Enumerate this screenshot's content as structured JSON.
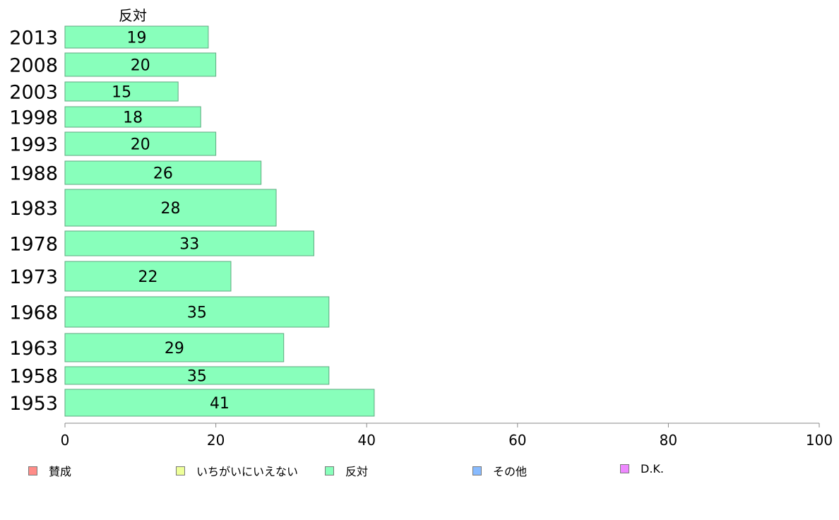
{
  "chart_data": {
    "type": "bar",
    "orientation": "horizontal",
    "series_title": "反対",
    "categories": [
      "2013",
      "2008",
      "2003",
      "1998",
      "1993",
      "1988",
      "1983",
      "1978",
      "1973",
      "1968",
      "1963",
      "1958",
      "1953"
    ],
    "series": [
      {
        "name": "反対",
        "values": [
          19,
          20,
          15,
          18,
          20,
          26,
          28,
          33,
          22,
          35,
          29,
          35,
          41
        ],
        "color": "#88ffbb"
      }
    ],
    "xlim": [
      0,
      100
    ],
    "x_ticks": [
      0,
      20,
      40,
      60,
      80,
      100
    ],
    "legend": [
      {
        "label": "賛成",
        "color": "#ff8c88"
      },
      {
        "label": "いちがいにいえない",
        "color": "#eeff99"
      },
      {
        "label": "反対",
        "color": "#88ffbb"
      },
      {
        "label": "その他",
        "color": "#88bbff"
      },
      {
        "label": "D.K.",
        "color": "#ee88ff"
      }
    ],
    "legend_position": "bottom",
    "grid": false
  }
}
